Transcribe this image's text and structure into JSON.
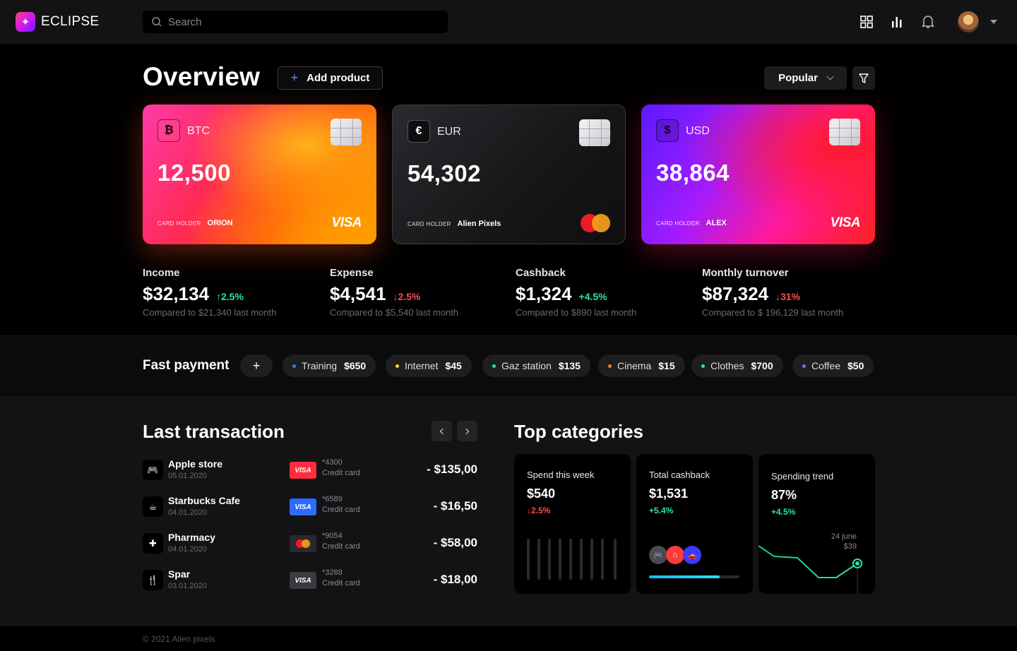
{
  "app": {
    "name": "ECLIPSE"
  },
  "search": {
    "placeholder": "Search"
  },
  "header": {
    "icons": [
      "grid-icon",
      "bar-chart-icon",
      "bell-icon"
    ],
    "avatar": "user-avatar"
  },
  "overview": {
    "title": "Overview",
    "add_product_label": "Add product",
    "sort_label": "Popular"
  },
  "cards": [
    {
      "currency": "BTC",
      "symbol": "₿",
      "amount": "12,500",
      "holder_label": "CARD HOLDER",
      "holder": "ORION",
      "brand": "VISA"
    },
    {
      "currency": "EUR",
      "symbol": "€",
      "amount": "54,302",
      "holder_label": "CARD HOLDER",
      "holder": "Alien Pixels",
      "brand": "mastercard"
    },
    {
      "currency": "USD",
      "symbol": "$",
      "amount": "38,864",
      "holder_label": "CARD HOLDER",
      "holder": "ALEX",
      "brand": "VISA"
    }
  ],
  "stats": [
    {
      "label": "Income",
      "value": "$32,134",
      "change": "2.5%",
      "direction": "up",
      "compare": "Compared to $21,340 last month"
    },
    {
      "label": "Expense",
      "value": "$4,541",
      "change": "2.5%",
      "direction": "down",
      "compare": "Compared to $5,540 last month"
    },
    {
      "label": "Cashback",
      "value": "$1,324",
      "change": "+4.5%",
      "direction": "up",
      "compare": "Compared to $890 last month"
    },
    {
      "label": "Monthly turnover",
      "value": "$87,324",
      "change": "31%",
      "direction": "down",
      "compare": "Compared to $ 196,129 last month"
    }
  ],
  "fast_payment": {
    "title": "Fast payment",
    "add_label": "+",
    "items": [
      {
        "name": "Training",
        "amount": "$650",
        "color": "#3b7bff"
      },
      {
        "name": "Internet",
        "amount": "$45",
        "color": "#ffd23b"
      },
      {
        "name": "Gaz station",
        "amount": "$135",
        "color": "#2ee59d"
      },
      {
        "name": "Cinema",
        "amount": "$15",
        "color": "#ff7a2e"
      },
      {
        "name": "Clothes",
        "amount": "$700",
        "color": "#2ee59d"
      },
      {
        "name": "Coffee",
        "amount": "$50",
        "color": "#a855ff"
      }
    ]
  },
  "last_transaction": {
    "title": "Last transaction",
    "items": [
      {
        "name": "Apple store",
        "date": "05.01.2020",
        "icon": "gamepad-icon",
        "card_brand": "VISA",
        "card_color": "#ff2d3d",
        "card_number": "*4300",
        "card_type": "Credit card",
        "amount": "- $135,00"
      },
      {
        "name": "Starbucks Cafe",
        "date": "04.01.2020",
        "icon": "coffee-icon",
        "card_brand": "VISA",
        "card_color": "#2b6bff",
        "card_number": "*6589",
        "card_type": "Credit card",
        "amount": "- $16,50"
      },
      {
        "name": "Pharmacy",
        "date": "04.01.2020",
        "icon": "medkit-icon",
        "card_brand": "mastercard",
        "card_color": "#2a2a2e",
        "card_number": "*9054",
        "card_type": "Credit card",
        "amount": "- $58,00"
      },
      {
        "name": "Spar",
        "date": "03.01.2020",
        "icon": "cutlery-icon",
        "card_brand": "VISA",
        "card_color": "#3a3a3f",
        "card_number": "*3288",
        "card_type": "Credit card",
        "amount": "- $18,00"
      }
    ]
  },
  "top_categories": {
    "title": "Top categories",
    "cards": [
      {
        "title": "Spend this week",
        "value": "$540",
        "change": "2.5%",
        "direction": "down"
      },
      {
        "title": "Total cashback",
        "value": "$1,531",
        "change": "+5.4%",
        "direction": "up",
        "progress": 0.78
      },
      {
        "title": "Spending trend",
        "value": "87%",
        "change": "+4.5%",
        "direction": "up",
        "tooltip_date": "24 june",
        "tooltip_value": "$39"
      }
    ]
  },
  "footer": {
    "text": "© 2021 Alien pixels"
  }
}
